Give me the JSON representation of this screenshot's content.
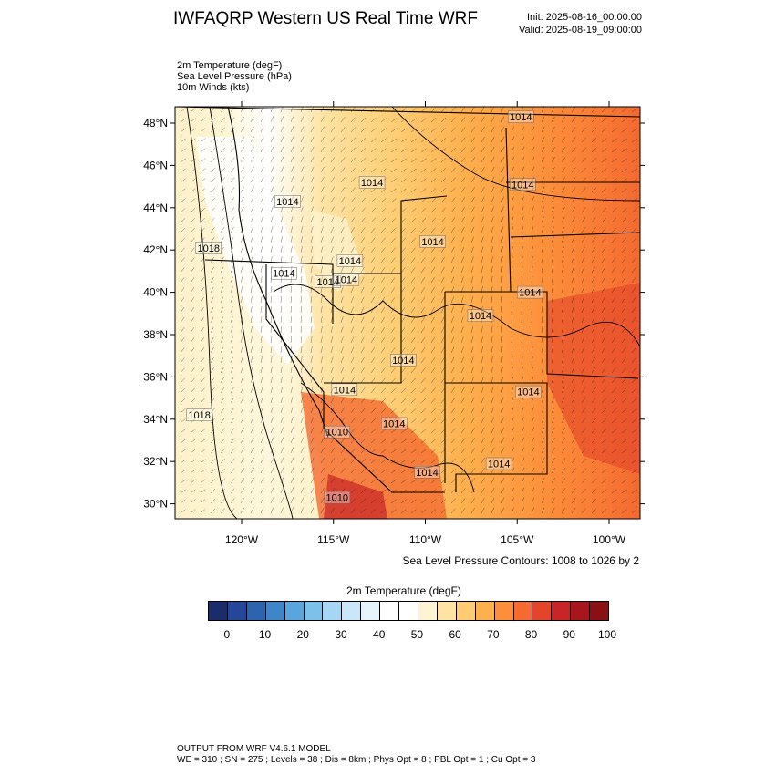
{
  "title": "IWFAQRP Western US Real Time WRF",
  "init": "Init: 2025-08-16_00:00:00",
  "valid": "Valid: 2025-08-19_09:00:00",
  "fields": [
    "2m Temperature   (degF)",
    "Sea Level Pressure   (hPa)",
    "10m Winds   (kts)"
  ],
  "map": {
    "lat_labels": [
      "48°N",
      "46°N",
      "44°N",
      "42°N",
      "40°N",
      "38°N",
      "36°N",
      "34°N",
      "32°N",
      "30°N"
    ],
    "lat_values": [
      48,
      46,
      44,
      42,
      40,
      38,
      36,
      34,
      32,
      30
    ],
    "lon_labels": [
      "120°W",
      "115°W",
      "110°W",
      "105°W",
      "100°W"
    ],
    "lon_values": [
      -120,
      -115,
      -110,
      -105,
      -100
    ],
    "pressure_labels": [
      {
        "text": "1014",
        "lon": -104.8,
        "lat": 48.3
      },
      {
        "text": "1014",
        "lon": -112.9,
        "lat": 45.2
      },
      {
        "text": "1014",
        "lon": -104.7,
        "lat": 45.1
      },
      {
        "text": "1014",
        "lon": -117.5,
        "lat": 44.3
      },
      {
        "text": "1018",
        "lon": -121.8,
        "lat": 42.1
      },
      {
        "text": "1014",
        "lon": -109.6,
        "lat": 42.4
      },
      {
        "text": "1014",
        "lon": -114.1,
        "lat": 41.5
      },
      {
        "text": "1014",
        "lon": -117.7,
        "lat": 40.9
      },
      {
        "text": "1014",
        "lon": -115.3,
        "lat": 40.5
      },
      {
        "text": "1014",
        "lon": -114.3,
        "lat": 40.6
      },
      {
        "text": "1014",
        "lon": -104.3,
        "lat": 40.0
      },
      {
        "text": "1014",
        "lon": -107.0,
        "lat": 38.9
      },
      {
        "text": "1014",
        "lon": -114.4,
        "lat": 35.4
      },
      {
        "text": "1014",
        "lon": -111.2,
        "lat": 36.8
      },
      {
        "text": "1014",
        "lon": -104.4,
        "lat": 35.3
      },
      {
        "text": "1018",
        "lon": -122.3,
        "lat": 34.2
      },
      {
        "text": "1014",
        "lon": -111.7,
        "lat": 33.8
      },
      {
        "text": "1010",
        "lon": -114.8,
        "lat": 33.4
      },
      {
        "text": "1014",
        "lon": -109.9,
        "lat": 31.5
      },
      {
        "text": "1014",
        "lon": -106.0,
        "lat": 31.9
      },
      {
        "text": "1010",
        "lon": -114.8,
        "lat": 30.3
      }
    ]
  },
  "contour_note": "Sea Level Pressure Contours: 1008 to 1026 by 2",
  "colorbar": {
    "title": "2m Temperature  (degF)",
    "colors": [
      "#1a2c6b",
      "#24479b",
      "#2c64b0",
      "#3f86c8",
      "#58a6dd",
      "#7cc1ea",
      "#a5d6f3",
      "#c9e7f8",
      "#e6f4fc",
      "#ffffff",
      "#ffffff",
      "#fff4d2",
      "#ffe3a3",
      "#ffcc72",
      "#ffb04e",
      "#fd8f3a",
      "#f46a30",
      "#e4452a",
      "#c92427",
      "#a8161d",
      "#891015"
    ],
    "labels": [
      "0",
      "10",
      "20",
      "30",
      "40",
      "50",
      "60",
      "70",
      "80",
      "90",
      "100"
    ],
    "label_values": [
      0,
      10,
      20,
      30,
      40,
      50,
      60,
      70,
      80,
      90,
      100
    ]
  },
  "footer": {
    "line1": "OUTPUT FROM WRF V4.6.1 MODEL",
    "line2": "WE = 310 ; SN = 275 ; Levels = 38 ; Dis = 8km ; Phys Opt = 8 ; PBL Opt = 1 ; Cu Opt = 3"
  }
}
